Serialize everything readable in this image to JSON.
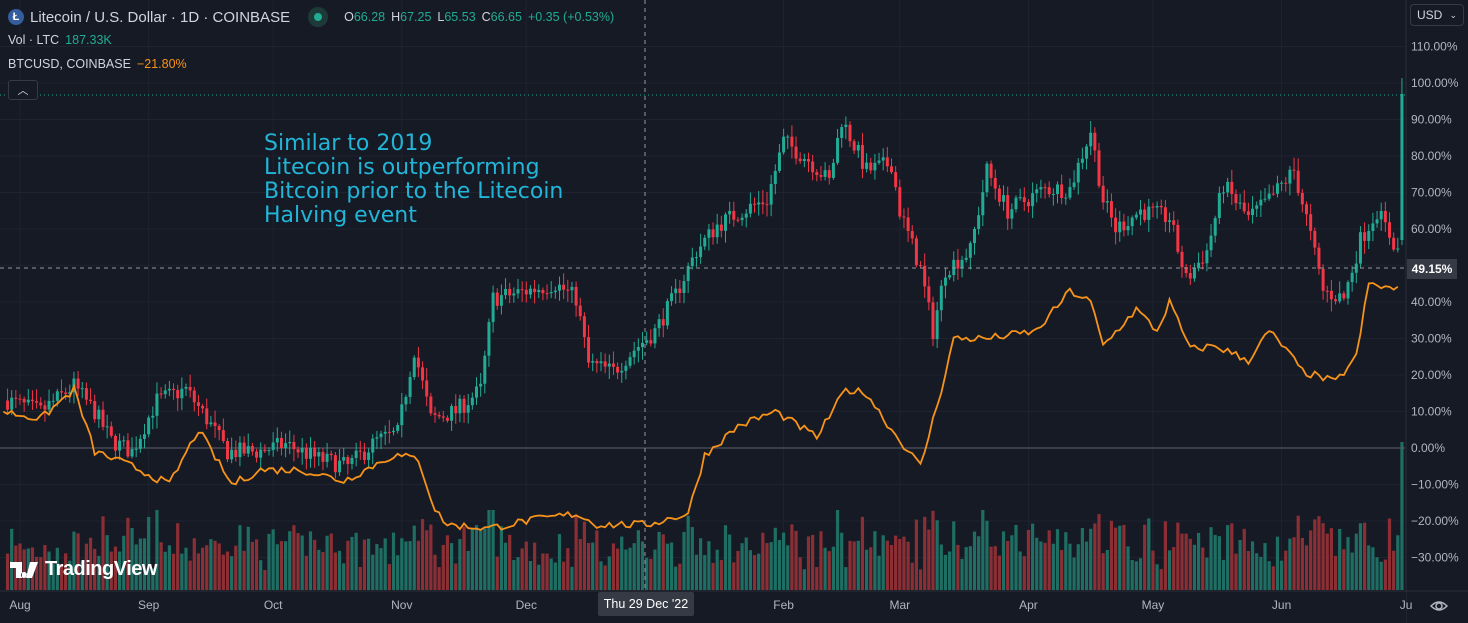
{
  "header": {
    "symbol_title": "Litecoin / U.S. Dollar · 1D · COINBASE",
    "symbol_icon": "litecoin-logo-icon",
    "ohlc": {
      "o_label": "O",
      "o": "66.28",
      "h_label": "H",
      "h": "67.25",
      "l_label": "L",
      "l": "65.53",
      "c_label": "C",
      "c": "66.65",
      "change": "+0.35 (+0.53%)"
    },
    "volume_label": "Vol · LTC",
    "volume_value": "187.33K",
    "compare_label": "BTCUSD, COINBASE",
    "compare_value": "−21.80%",
    "collapse_icon": "chevron-up-icon"
  },
  "annotation": {
    "lines": [
      "Similar to 2019",
      "Litecoin is outperforming",
      "Bitcoin prior to the Litecoin",
      "Halving event"
    ]
  },
  "price_axis": {
    "currency": "USD",
    "ticks": [
      "110.00%",
      "100.00%",
      "90.00%",
      "80.00%",
      "70.00%",
      "60.00%",
      "40.00%",
      "30.00%",
      "20.00%",
      "10.00%",
      "0.00%",
      "−10.00%",
      "−20.00%",
      "−30.00%"
    ],
    "crosshair_value": "49.15%",
    "settings_icon": "gear-icon"
  },
  "time_axis": {
    "ticks": [
      {
        "label": "Aug",
        "date": "2022-08-01"
      },
      {
        "label": "Sep",
        "date": "2022-09-01"
      },
      {
        "label": "Oct",
        "date": "2022-10-01"
      },
      {
        "label": "Nov",
        "date": "2022-11-01"
      },
      {
        "label": "Dec",
        "date": "2022-12-01"
      },
      {
        "label": "Feb",
        "date": "2023-02-01"
      },
      {
        "label": "Mar",
        "date": "2023-03-01"
      },
      {
        "label": "Apr",
        "date": "2023-04-01"
      },
      {
        "label": "May",
        "date": "2023-05-01"
      },
      {
        "label": "Jun",
        "date": "2023-06-01"
      },
      {
        "label": "Ju",
        "date": "2023-07-01"
      }
    ],
    "crosshair_date": "Thu 29 Dec '22"
  },
  "branding": {
    "logo_text": "TradingView"
  },
  "colors": {
    "up": "#22ab94",
    "down": "#f23645",
    "compare": "#f7931a",
    "annotation": "#22b5d8",
    "background": "#161a25"
  },
  "chart_data": {
    "type": "candlestick",
    "scale": "percent",
    "ylim": [
      -35,
      112
    ],
    "grid": true,
    "crosshair": {
      "date": "2022-12-29",
      "value": 49.15
    },
    "series": [
      {
        "name": "Litecoin / U.S. Dollar",
        "kind": "candlestick",
        "points": [
          [
            "2022-07-29",
            13
          ],
          [
            "2022-08-06",
            10
          ],
          [
            "2022-08-14",
            17
          ],
          [
            "2022-08-19",
            10
          ],
          [
            "2022-08-23",
            2
          ],
          [
            "2022-08-28",
            -1
          ],
          [
            "2022-09-03",
            13
          ],
          [
            "2022-09-10",
            16
          ],
          [
            "2022-09-15",
            8
          ],
          [
            "2022-09-20",
            -1
          ],
          [
            "2022-09-27",
            -1
          ],
          [
            "2022-10-04",
            1
          ],
          [
            "2022-10-12",
            -3
          ],
          [
            "2022-10-19",
            -5
          ],
          [
            "2022-10-26",
            2
          ],
          [
            "2022-10-31",
            4
          ],
          [
            "2022-11-04",
            27
          ],
          [
            "2022-11-08",
            8
          ],
          [
            "2022-11-14",
            10
          ],
          [
            "2022-11-20",
            16
          ],
          [
            "2022-11-23",
            41
          ],
          [
            "2022-12-01",
            43
          ],
          [
            "2022-12-08",
            45
          ],
          [
            "2022-12-13",
            41
          ],
          [
            "2022-12-16",
            23
          ],
          [
            "2022-12-22",
            21
          ],
          [
            "2022-12-27",
            27
          ],
          [
            "2023-01-01",
            32
          ],
          [
            "2023-01-06",
            42
          ],
          [
            "2023-01-11",
            54
          ],
          [
            "2023-01-16",
            61
          ],
          [
            "2023-01-22",
            65
          ],
          [
            "2023-01-28",
            68
          ],
          [
            "2023-02-01",
            84
          ],
          [
            "2023-02-07",
            79
          ],
          [
            "2023-02-12",
            73
          ],
          [
            "2023-02-15",
            90
          ],
          [
            "2023-02-21",
            76
          ],
          [
            "2023-02-27",
            78
          ],
          [
            "2023-03-01",
            65
          ],
          [
            "2023-03-06",
            49
          ],
          [
            "2023-03-09",
            32
          ],
          [
            "2023-03-12",
            49
          ],
          [
            "2023-03-18",
            54
          ],
          [
            "2023-03-22",
            76
          ],
          [
            "2023-03-27",
            65
          ],
          [
            "2023-04-05",
            71
          ],
          [
            "2023-04-11",
            71
          ],
          [
            "2023-04-16",
            87
          ],
          [
            "2023-04-19",
            68
          ],
          [
            "2023-04-22",
            60
          ],
          [
            "2023-04-28",
            65
          ],
          [
            "2023-05-05",
            63
          ],
          [
            "2023-05-09",
            46
          ],
          [
            "2023-05-14",
            54
          ],
          [
            "2023-05-18",
            72
          ],
          [
            "2023-05-24",
            63
          ],
          [
            "2023-05-29",
            68
          ],
          [
            "2023-06-04",
            76
          ],
          [
            "2023-06-07",
            63
          ],
          [
            "2023-06-11",
            43
          ],
          [
            "2023-06-16",
            41
          ],
          [
            "2023-06-20",
            57
          ],
          [
            "2023-06-24",
            65
          ],
          [
            "2023-06-29",
            54
          ],
          [
            "2023-06-30",
            97
          ]
        ]
      },
      {
        "name": "BTCUSD, COINBASE",
        "kind": "line",
        "points": [
          [
            "2022-07-28",
            10
          ],
          [
            "2022-08-06",
            8
          ],
          [
            "2022-08-14",
            16
          ],
          [
            "2022-08-19",
            -1
          ],
          [
            "2022-08-28",
            -5
          ],
          [
            "2022-09-06",
            -10
          ],
          [
            "2022-09-13",
            5
          ],
          [
            "2022-09-21",
            -10
          ],
          [
            "2022-09-28",
            -6
          ],
          [
            "2022-10-08",
            -6
          ],
          [
            "2022-10-18",
            -9
          ],
          [
            "2022-10-30",
            -2
          ],
          [
            "2022-11-05",
            -3
          ],
          [
            "2022-11-09",
            -17
          ],
          [
            "2022-11-12",
            -21
          ],
          [
            "2022-11-22",
            -22
          ],
          [
            "2022-12-01",
            -20
          ],
          [
            "2022-12-13",
            -18
          ],
          [
            "2022-12-18",
            -21
          ],
          [
            "2022-12-30",
            -21
          ],
          [
            "2023-01-09",
            -18
          ],
          [
            "2023-01-13",
            -2
          ],
          [
            "2023-01-21",
            6
          ],
          [
            "2023-01-30",
            10
          ],
          [
            "2023-02-09",
            3
          ],
          [
            "2023-02-16",
            16
          ],
          [
            "2023-02-21",
            15
          ],
          [
            "2023-02-24",
            10
          ],
          [
            "2023-02-27",
            5
          ],
          [
            "2023-03-06",
            -5
          ],
          [
            "2023-03-11",
            16
          ],
          [
            "2023-03-14",
            30
          ],
          [
            "2023-03-22",
            30
          ],
          [
            "2023-04-03",
            32
          ],
          [
            "2023-04-11",
            43
          ],
          [
            "2023-04-16",
            40
          ],
          [
            "2023-04-19",
            28
          ],
          [
            "2023-04-27",
            38
          ],
          [
            "2023-05-02",
            32
          ],
          [
            "2023-05-05",
            40
          ],
          [
            "2023-05-10",
            27
          ],
          [
            "2023-05-16",
            28
          ],
          [
            "2023-05-24",
            24
          ],
          [
            "2023-05-29",
            32
          ],
          [
            "2023-06-02",
            27
          ],
          [
            "2023-06-06",
            21
          ],
          [
            "2023-06-14",
            18
          ],
          [
            "2023-06-19",
            25
          ],
          [
            "2023-06-22",
            45
          ],
          [
            "2023-06-30",
            43
          ]
        ]
      }
    ],
    "volume": {
      "name": "Vol · LTC",
      "last": "187.33K"
    }
  }
}
